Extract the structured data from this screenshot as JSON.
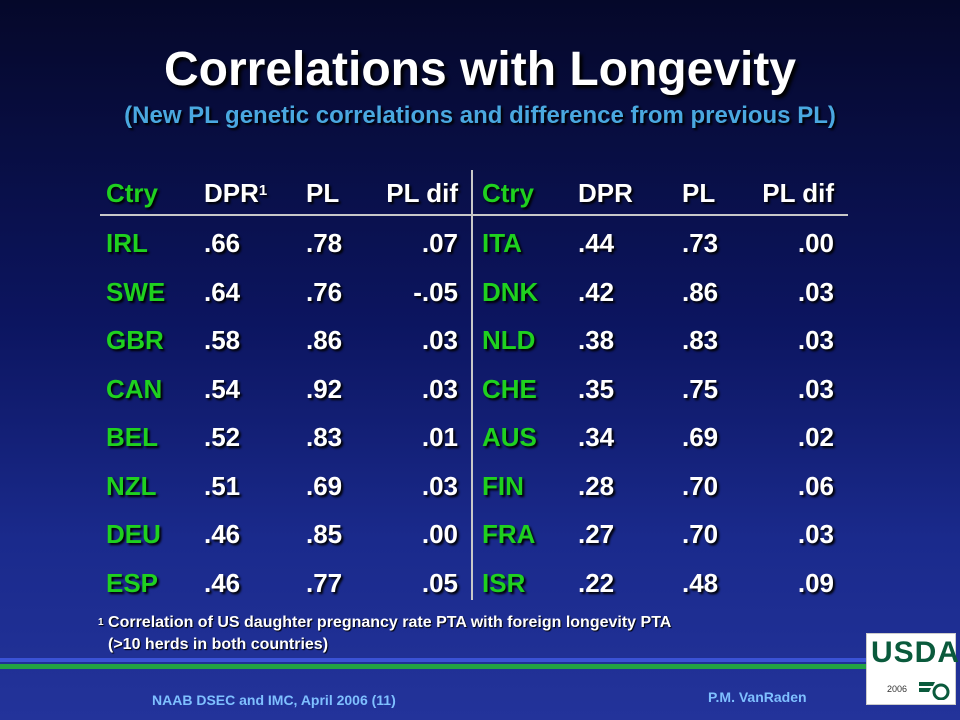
{
  "title": "Correlations with Longevity",
  "subtitle": "(New PL genetic correlations and difference from previous PL)",
  "table": {
    "headers": {
      "left": {
        "ctry": "Ctry",
        "dpr": "DPR",
        "dpr_sup": "1",
        "pl": "PL",
        "pldif": "PL dif"
      },
      "right": {
        "ctry": "Ctry",
        "dpr": "DPR",
        "pl": "PL",
        "pldif": "PL dif"
      }
    },
    "left_rows": [
      {
        "ctry": "IRL",
        "dpr": ".66",
        "pl": ".78",
        "pldif": ".07"
      },
      {
        "ctry": "SWE",
        "dpr": ".64",
        "pl": ".76",
        "pldif": "-.05"
      },
      {
        "ctry": "GBR",
        "dpr": ".58",
        "pl": ".86",
        "pldif": ".03"
      },
      {
        "ctry": "CAN",
        "dpr": ".54",
        "pl": ".92",
        "pldif": ".03"
      },
      {
        "ctry": "BEL",
        "dpr": ".52",
        "pl": ".83",
        "pldif": ".01"
      },
      {
        "ctry": "NZL",
        "dpr": ".51",
        "pl": ".69",
        "pldif": ".03"
      },
      {
        "ctry": "DEU",
        "dpr": ".46",
        "pl": ".85",
        "pldif": ".00"
      },
      {
        "ctry": "ESP",
        "dpr": ".46",
        "pl": ".77",
        "pldif": ".05"
      }
    ],
    "right_rows": [
      {
        "ctry": "ITA",
        "dpr": ".44",
        "pl": ".73",
        "pldif": ".00"
      },
      {
        "ctry": "DNK",
        "dpr": ".42",
        "pl": ".86",
        "pldif": ".03"
      },
      {
        "ctry": "NLD",
        "dpr": ".38",
        "pl": ".83",
        "pldif": ".03"
      },
      {
        "ctry": "CHE",
        "dpr": ".35",
        "pl": ".75",
        "pldif": ".03"
      },
      {
        "ctry": "AUS",
        "dpr": ".34",
        "pl": ".69",
        "pldif": ".02"
      },
      {
        "ctry": "FIN",
        "dpr": ".28",
        "pl": ".70",
        "pldif": ".06"
      },
      {
        "ctry": "FRA",
        "dpr": ".27",
        "pl": ".70",
        "pldif": ".03"
      },
      {
        "ctry": "ISR",
        "dpr": ".22",
        "pl": ".48",
        "pldif": ".09"
      }
    ]
  },
  "footnote": {
    "marker": "1",
    "line1": "Correlation of US daughter pregnancy rate PTA with foreign longevity PTA",
    "line2": "(>10 herds in both countries)"
  },
  "footer": {
    "left": "NAAB DSEC and IMC, April 2006 (11)",
    "right": "P.M. VanRaden"
  },
  "logo": {
    "text": "USDA",
    "year": "2006",
    "mark": "aes-logo-mark"
  },
  "colors": {
    "country": "#1fd11f",
    "subtitle": "#4aa8e0",
    "footer": "#7fc0ff",
    "value": "#ffffff"
  }
}
